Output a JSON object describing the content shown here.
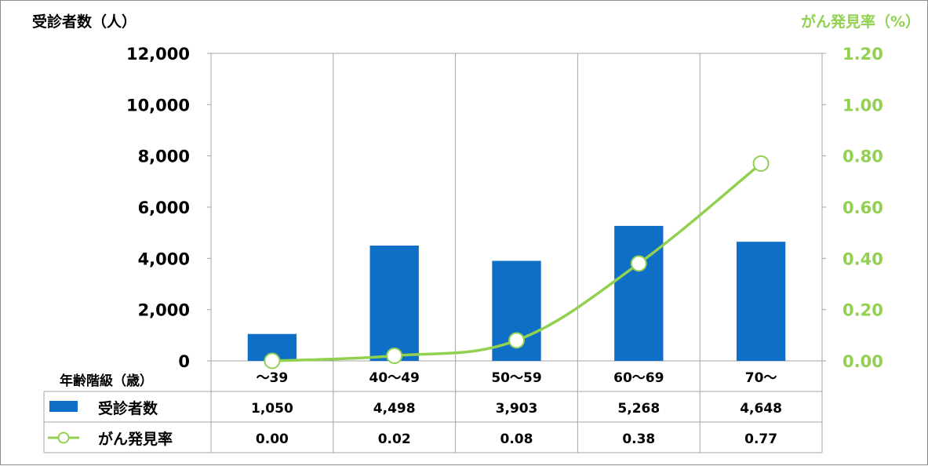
{
  "chart_data": {
    "type": "bar",
    "categories": [
      "～39",
      "40～49",
      "50～59",
      "60～69",
      "70～"
    ],
    "series": [
      {
        "name": "受診者数",
        "type": "bar",
        "axis": "left",
        "color": "#0F6FC6",
        "values": [
          1050,
          4498,
          3903,
          5268,
          4648
        ],
        "labels": [
          "1,050",
          "4,498",
          "3,903",
          "5,268",
          "4,648"
        ]
      },
      {
        "name": "がん発見率",
        "type": "line",
        "axis": "right",
        "color": "#92D050",
        "values": [
          0.0,
          0.02,
          0.08,
          0.38,
          0.77
        ],
        "labels": [
          "0.00",
          "0.02",
          "0.08",
          "0.38",
          "0.77"
        ]
      }
    ],
    "y_left": {
      "label": "受診者数（人）",
      "min": 0,
      "max": 12000,
      "ticks": [
        0,
        2000,
        4000,
        6000,
        8000,
        10000,
        12000
      ],
      "tick_labels": [
        "0",
        "2,000",
        "4,000",
        "6,000",
        "8,000",
        "10,000",
        "12,000"
      ]
    },
    "y_right": {
      "label": "がん発見率（%）",
      "min": 0,
      "max": 1.2,
      "ticks": [
        0,
        0.2,
        0.4,
        0.6,
        0.8,
        1.0,
        1.2
      ],
      "tick_labels": [
        "0.00",
        "0.20",
        "0.40",
        "0.60",
        "0.80",
        "1.00",
        "1.20"
      ],
      "color": "#92D050"
    },
    "xlabel": "年齢階級（歳）",
    "grid": "vertical",
    "legend": "data-table"
  }
}
